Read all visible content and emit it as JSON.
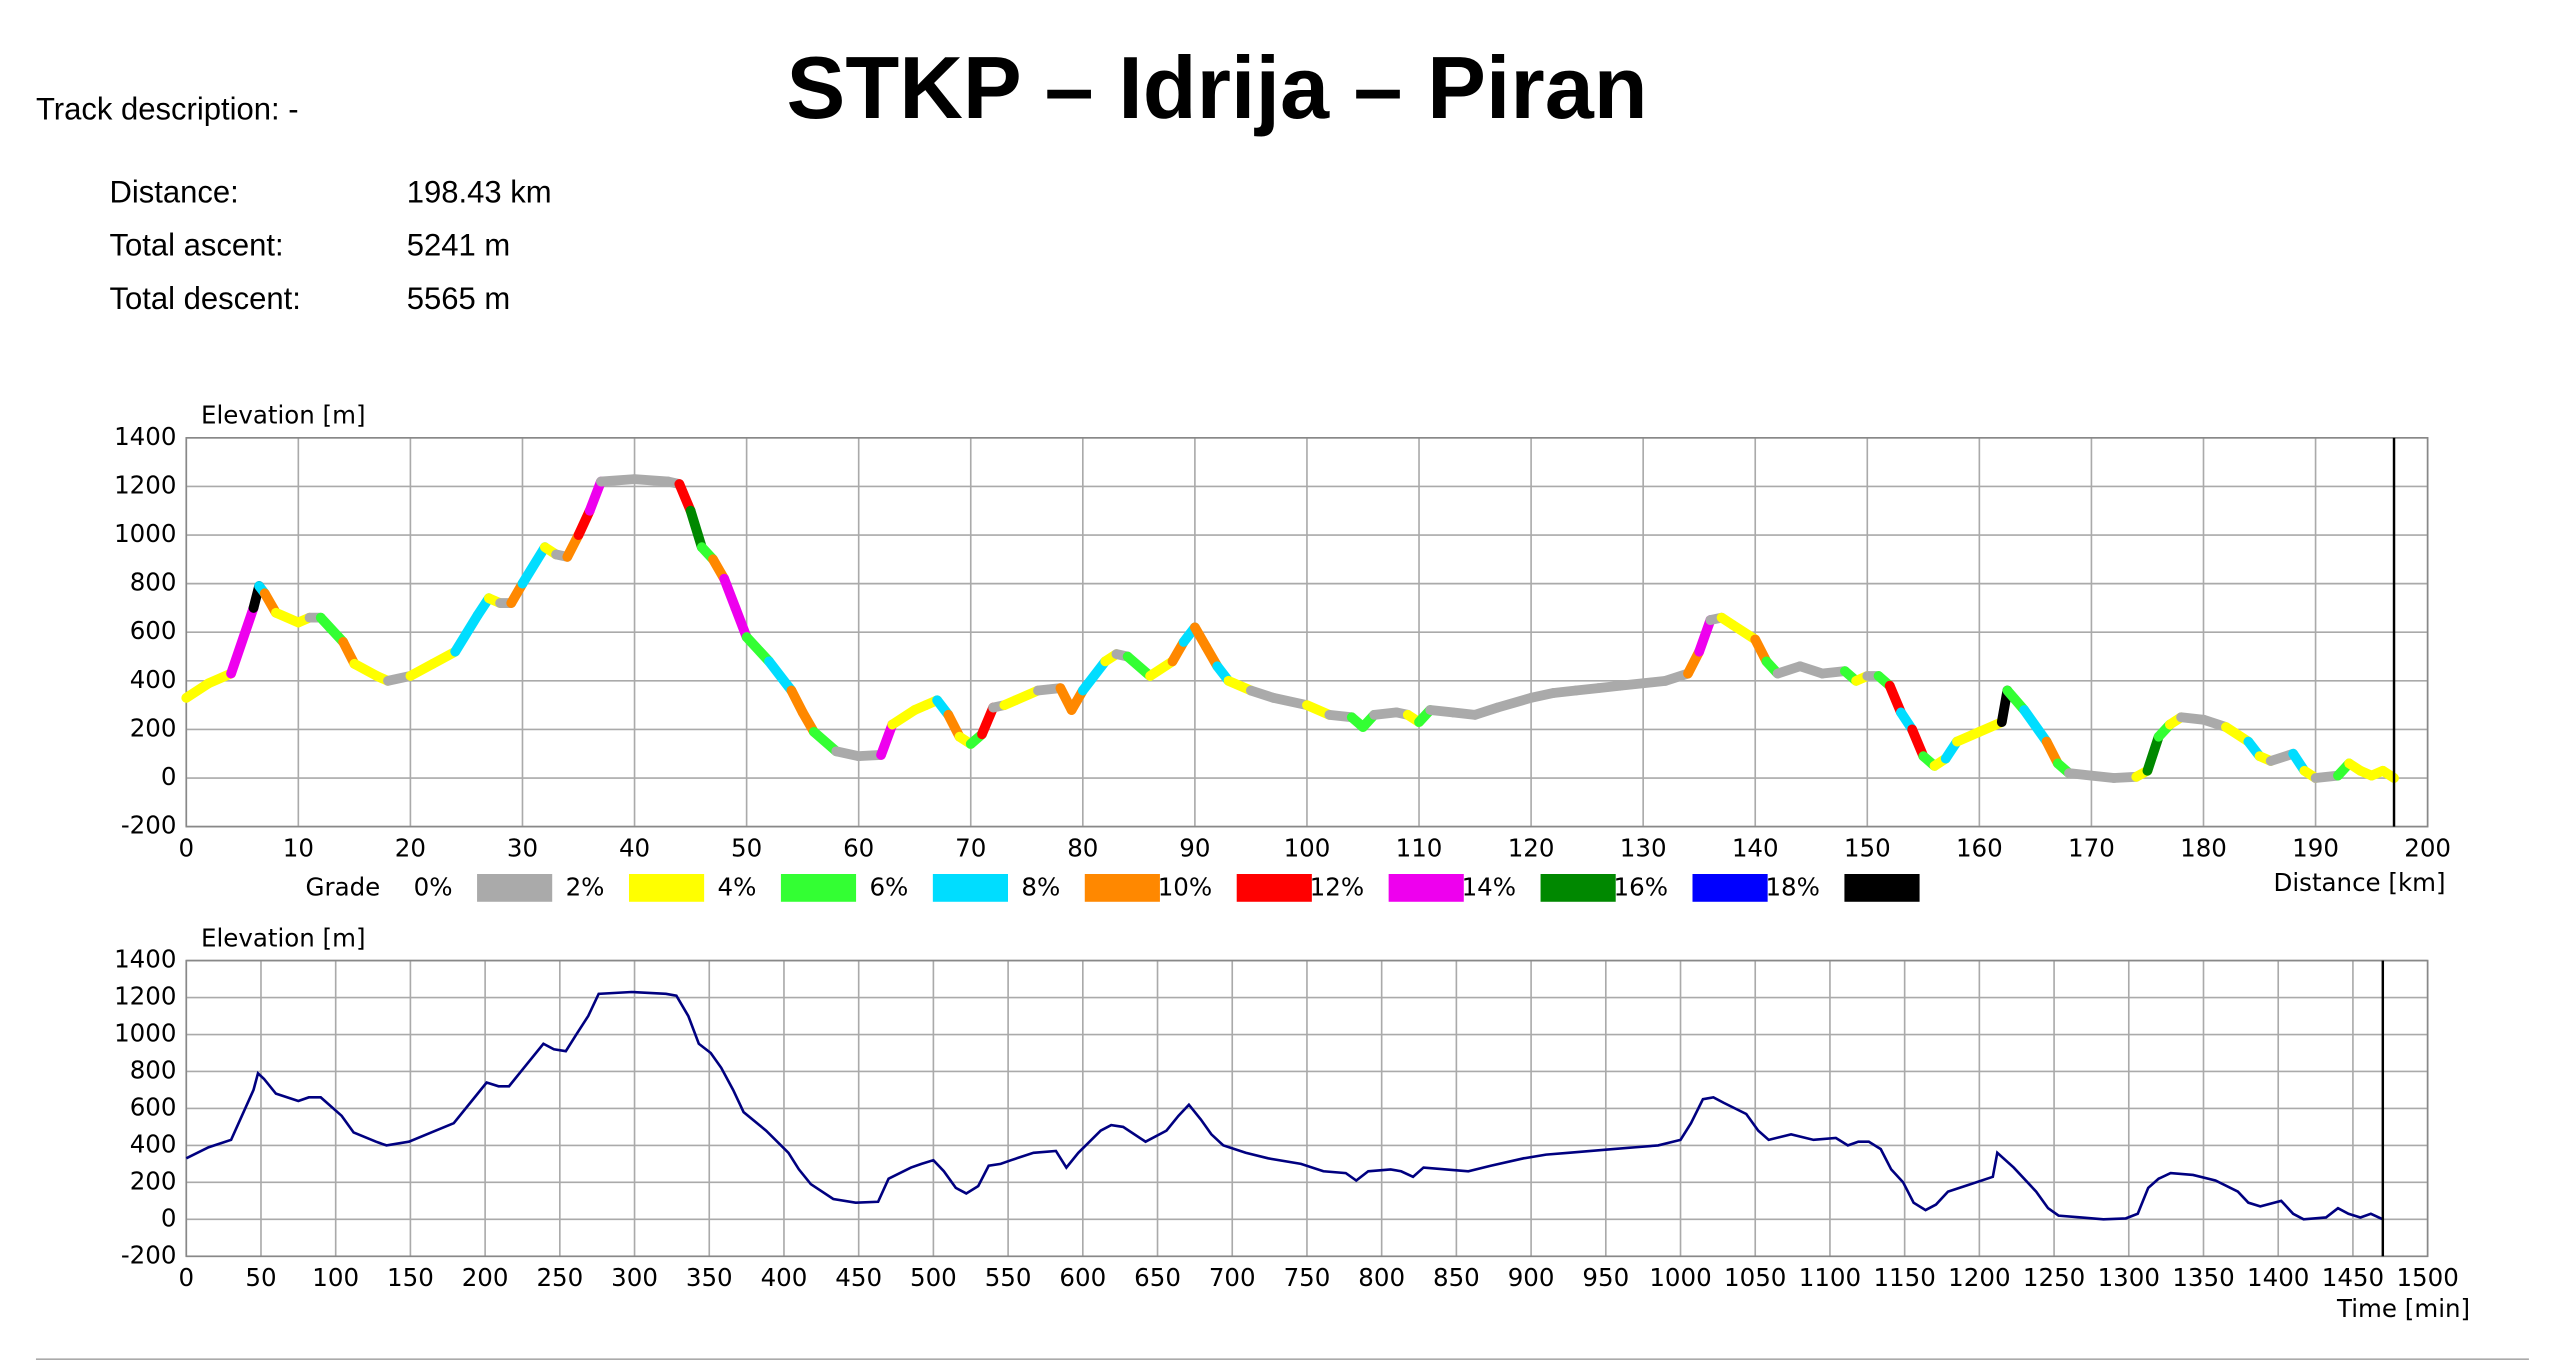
{
  "header": {
    "title": "STKP – Idrija – Piran",
    "description_label": "Track description: -"
  },
  "stats": [
    {
      "label": "Distance:",
      "value": "198.43 km"
    },
    {
      "label": "Total ascent:",
      "value": "5241 m"
    },
    {
      "label": "Total descent:",
      "value": "5565 m"
    }
  ],
  "chart_data": [
    {
      "type": "line",
      "color_by": "grade",
      "y_label": "Elevation [m]",
      "x_label": "Distance [km]",
      "grid": true,
      "x": [
        0,
        2,
        4,
        6,
        6.5,
        7,
        8,
        10,
        11,
        12,
        14,
        15,
        17,
        18,
        20,
        22,
        24,
        26,
        27,
        28,
        29,
        30,
        32,
        33,
        34,
        35,
        36,
        37,
        40,
        43,
        44,
        45,
        46,
        47,
        48,
        49,
        50,
        52,
        54,
        55,
        56,
        58,
        60,
        62,
        63,
        65,
        66,
        67,
        68,
        69,
        70,
        71,
        72,
        73,
        74,
        76,
        78,
        79,
        80,
        82,
        83,
        84,
        86,
        88,
        89,
        90,
        91,
        92,
        93,
        95,
        97,
        100,
        102,
        104,
        105,
        106,
        108,
        109,
        110,
        111,
        113,
        115,
        117,
        120,
        122,
        124,
        126,
        128,
        130,
        132,
        134,
        135,
        136,
        137,
        138,
        140,
        141,
        142,
        144,
        146,
        148,
        149,
        150,
        151,
        152,
        153,
        154,
        155,
        156,
        157,
        158,
        160,
        162,
        162.5,
        164,
        166,
        167,
        168,
        170,
        172,
        174,
        175,
        176,
        177,
        178,
        180,
        182,
        184,
        185,
        186,
        188,
        189,
        190,
        192,
        193,
        194,
        195,
        196,
        197
      ],
      "values": [
        330,
        390,
        430,
        700,
        790,
        760,
        680,
        640,
        660,
        660,
        560,
        470,
        420,
        400,
        420,
        470,
        520,
        670,
        740,
        720,
        720,
        800,
        950,
        920,
        910,
        1000,
        1100,
        1220,
        1230,
        1220,
        1210,
        1100,
        950,
        900,
        820,
        700,
        580,
        480,
        360,
        270,
        190,
        110,
        90,
        95,
        220,
        280,
        300,
        320,
        260,
        170,
        140,
        180,
        290,
        300,
        320,
        360,
        370,
        280,
        360,
        480,
        510,
        500,
        420,
        480,
        560,
        620,
        540,
        460,
        400,
        360,
        330,
        300,
        260,
        250,
        210,
        260,
        270,
        260,
        230,
        280,
        270,
        260,
        290,
        330,
        350,
        360,
        370,
        380,
        390,
        400,
        430,
        520,
        650,
        660,
        630,
        570,
        480,
        430,
        460,
        430,
        440,
        400,
        420,
        420,
        380,
        270,
        200,
        90,
        50,
        80,
        150,
        190,
        230,
        360,
        280,
        150,
        60,
        20,
        10,
        0,
        5,
        30,
        170,
        220,
        250,
        240,
        210,
        150,
        90,
        70,
        100,
        30,
        0,
        10,
        60,
        30,
        10,
        30,
        0
      ],
      "xlim": [
        0,
        200
      ],
      "ylim": [
        -200,
        1400
      ],
      "xticks": [
        0,
        10,
        20,
        30,
        40,
        50,
        60,
        70,
        80,
        90,
        100,
        110,
        120,
        130,
        140,
        150,
        160,
        170,
        180,
        190,
        200
      ],
      "yticks": [
        -200,
        0,
        200,
        400,
        600,
        800,
        1000,
        1200,
        1400
      ],
      "legend_title": "Grade",
      "grade_legend": [
        {
          "value": 0,
          "label": "0%",
          "color": "#aaaaaa"
        },
        {
          "value": 2,
          "label": "2%",
          "color": "#ffff00"
        },
        {
          "value": 4,
          "label": "4%",
          "color": "#33ff33"
        },
        {
          "value": 6,
          "label": "6%",
          "color": "#00ddff"
        },
        {
          "value": 8,
          "label": "8%",
          "color": "#ff8800"
        },
        {
          "value": 10,
          "label": "10%",
          "color": "#ff0000"
        },
        {
          "value": 12,
          "label": "12%",
          "color": "#ee00ee"
        },
        {
          "value": 14,
          "label": "14%",
          "color": "#008800"
        },
        {
          "value": 16,
          "label": "16%",
          "color": "#0000ff"
        },
        {
          "value": 18,
          "label": "18%",
          "color": "#000000"
        }
      ]
    },
    {
      "type": "line",
      "color": "#000080",
      "y_label": "Elevation [m]",
      "x_label": "Time [min]",
      "grid": true,
      "x": [
        0,
        15,
        30,
        45,
        48,
        52,
        60,
        75,
        82,
        90,
        104,
        112,
        127,
        134,
        149,
        164,
        179,
        194,
        201,
        209,
        216,
        224,
        239,
        246,
        254,
        261,
        269,
        276,
        298,
        321,
        328,
        336,
        343,
        351,
        358,
        366,
        373,
        388,
        403,
        410,
        418,
        433,
        448,
        463,
        470,
        485,
        492,
        500,
        507,
        515,
        522,
        530,
        537,
        545,
        552,
        567,
        582,
        589,
        597,
        612,
        619,
        627,
        642,
        656,
        664,
        671,
        679,
        686,
        694,
        709,
        724,
        746,
        761,
        776,
        783,
        791,
        806,
        813,
        821,
        828,
        843,
        858,
        873,
        895,
        910,
        925,
        940,
        955,
        970,
        985,
        1000,
        1007,
        1015,
        1022,
        1029,
        1044,
        1052,
        1059,
        1074,
        1089,
        1104,
        1112,
        1119,
        1126,
        1134,
        1141,
        1149,
        1156,
        1164,
        1171,
        1179,
        1194,
        1209,
        1212,
        1223,
        1238,
        1246,
        1253,
        1268,
        1283,
        1298,
        1306,
        1313,
        1320,
        1328,
        1343,
        1358,
        1373,
        1380,
        1388,
        1402,
        1410,
        1417,
        1432,
        1440,
        1447,
        1455,
        1462,
        1470
      ],
      "values": [
        330,
        390,
        430,
        700,
        790,
        760,
        680,
        640,
        660,
        660,
        560,
        470,
        420,
        400,
        420,
        470,
        520,
        670,
        740,
        720,
        720,
        800,
        950,
        920,
        910,
        1000,
        1100,
        1220,
        1230,
        1220,
        1210,
        1100,
        950,
        900,
        820,
        700,
        580,
        480,
        360,
        270,
        190,
        110,
        90,
        95,
        220,
        280,
        300,
        320,
        260,
        170,
        140,
        180,
        290,
        300,
        320,
        360,
        370,
        280,
        360,
        480,
        510,
        500,
        420,
        480,
        560,
        620,
        540,
        460,
        400,
        360,
        330,
        300,
        260,
        250,
        210,
        260,
        270,
        260,
        230,
        280,
        270,
        260,
        290,
        330,
        350,
        360,
        370,
        380,
        390,
        400,
        430,
        520,
        650,
        660,
        630,
        570,
        480,
        430,
        460,
        430,
        440,
        400,
        420,
        420,
        380,
        270,
        200,
        90,
        50,
        80,
        150,
        190,
        230,
        360,
        280,
        150,
        60,
        20,
        10,
        0,
        5,
        30,
        170,
        220,
        250,
        240,
        210,
        150,
        90,
        70,
        100,
        30,
        0,
        10,
        60,
        30,
        10,
        30,
        0
      ],
      "xlim": [
        0,
        1500
      ],
      "ylim": [
        -200,
        1400
      ],
      "xticks": [
        0,
        50,
        100,
        150,
        200,
        250,
        300,
        350,
        400,
        450,
        500,
        550,
        600,
        650,
        700,
        750,
        800,
        850,
        900,
        950,
        1000,
        1050,
        1100,
        1150,
        1200,
        1250,
        1300,
        1350,
        1400,
        1450,
        1500
      ],
      "yticks": [
        -200,
        0,
        200,
        400,
        600,
        800,
        1000,
        1200,
        1400
      ]
    }
  ]
}
